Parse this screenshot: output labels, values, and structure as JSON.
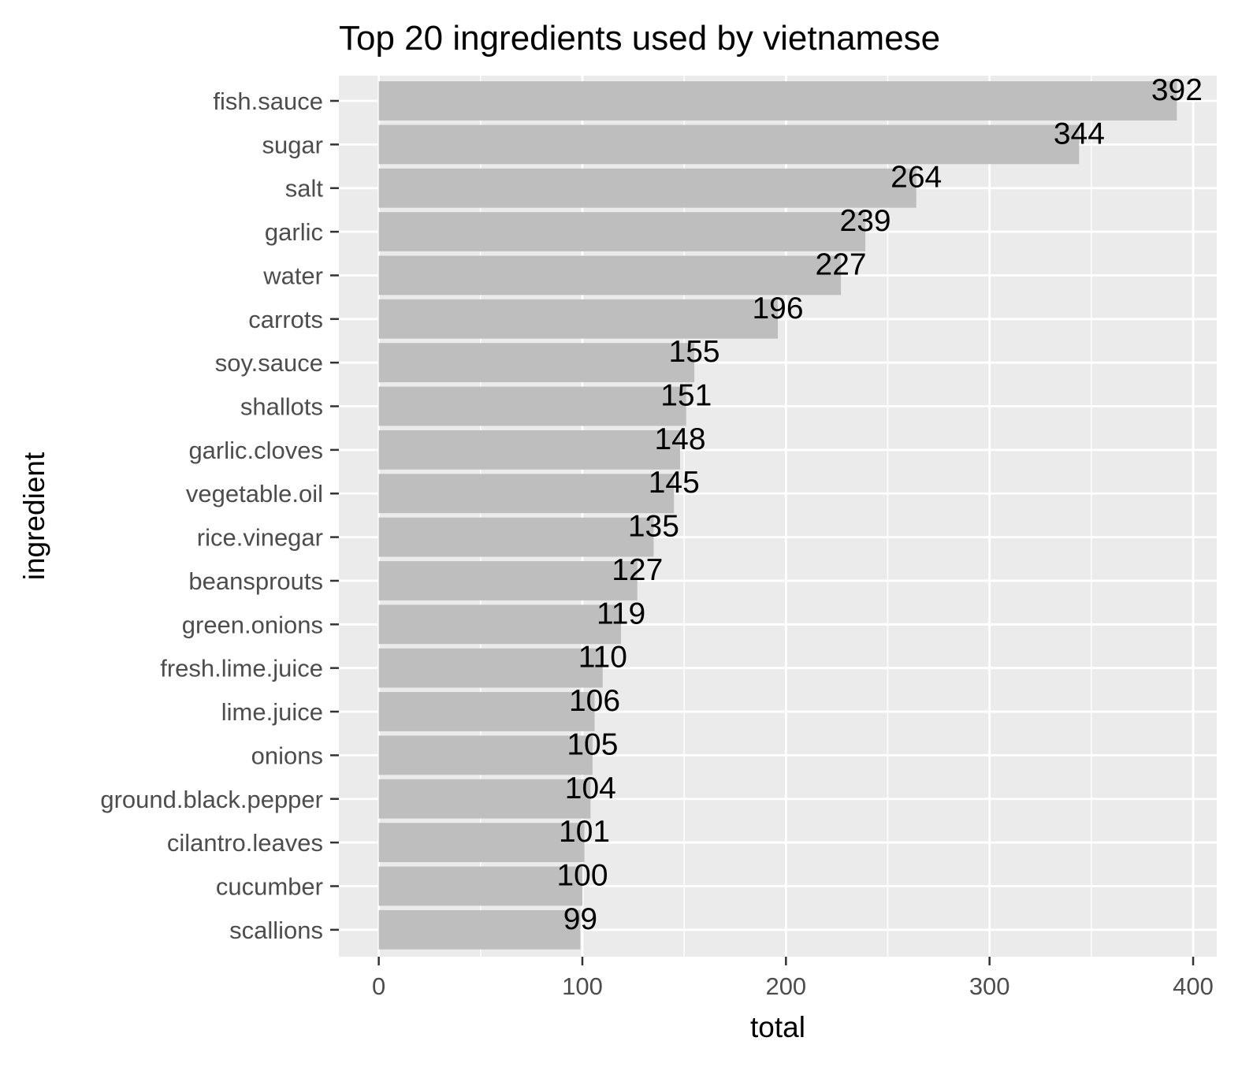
{
  "chart_data": {
    "type": "bar",
    "orientation": "horizontal",
    "title": "Top 20 ingredients used by vietnamese",
    "xlabel": "total",
    "ylabel": "ingredient",
    "categories": [
      "fish.sauce",
      "sugar",
      "salt",
      "garlic",
      "water",
      "carrots",
      "soy.sauce",
      "shallots",
      "garlic.cloves",
      "vegetable.oil",
      "rice.vinegar",
      "beansprouts",
      "green.onions",
      "fresh.lime.juice",
      "lime.juice",
      "onions",
      "ground.black.pepper",
      "cilantro.leaves",
      "cucumber",
      "scallions"
    ],
    "values": [
      392,
      344,
      264,
      239,
      227,
      196,
      155,
      151,
      148,
      145,
      135,
      127,
      119,
      110,
      106,
      105,
      104,
      101,
      100,
      99
    ],
    "data_labels": [
      "392",
      "344",
      "264",
      "239",
      "227",
      "196",
      "155",
      "151",
      "148",
      "145",
      "135",
      "127",
      "119",
      "110",
      "106",
      "105",
      "104",
      "101",
      "100",
      "99"
    ],
    "xlim": [
      -19.6,
      411.6
    ],
    "xticks": [
      0,
      100,
      200,
      300,
      400
    ],
    "xtick_labels": [
      "0",
      "100",
      "200",
      "300",
      "400"
    ],
    "grid": true,
    "legend": "none",
    "colors": {
      "panel_background": "#ebebeb",
      "grid": "#ffffff",
      "bar_fill": "#bebebe",
      "tick_label": "#4d4d4d",
      "tick_mark": "#333333",
      "text": "#000000"
    }
  }
}
